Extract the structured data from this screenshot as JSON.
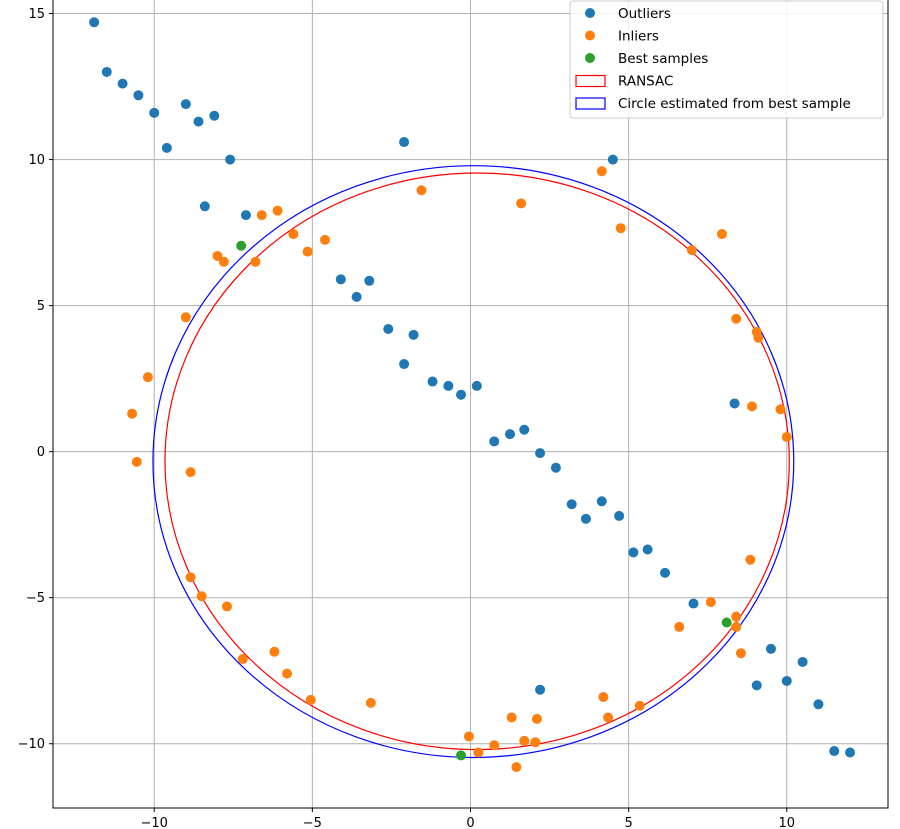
{
  "chart_data": {
    "type": "scatter",
    "title": "",
    "xlabel": "",
    "ylabel": "",
    "xlim": [
      -13.2,
      13.2
    ],
    "ylim": [
      -12.2,
      15.6
    ],
    "grid": true,
    "legend_placement": "top-right",
    "x_ticks": [
      {
        "value": -10,
        "label": "−10"
      },
      {
        "value": -5,
        "label": "−5"
      },
      {
        "value": 0,
        "label": "0"
      },
      {
        "value": 5,
        "label": "5"
      },
      {
        "value": 10,
        "label": "10"
      }
    ],
    "y_ticks": [
      {
        "value": 15,
        "label": "15"
      },
      {
        "value": 10,
        "label": "10"
      },
      {
        "value": 5,
        "label": "5"
      },
      {
        "value": 0,
        "label": "0"
      },
      {
        "value": -5,
        "label": "−5"
      },
      {
        "value": -10,
        "label": "−10"
      }
    ],
    "series": [
      {
        "name": "Outliers",
        "kind": "points",
        "color": "#1f77b4",
        "points": [
          [
            -11.9,
            14.7
          ],
          [
            -11.5,
            13.0
          ],
          [
            -11.0,
            12.6
          ],
          [
            -10.5,
            12.2
          ],
          [
            -10.0,
            11.6
          ],
          [
            -9.6,
            10.4
          ],
          [
            -9.0,
            11.9
          ],
          [
            -8.6,
            11.3
          ],
          [
            -8.1,
            11.5
          ],
          [
            -7.6,
            10.0
          ],
          [
            -8.4,
            8.4
          ],
          [
            -7.1,
            8.1
          ],
          [
            -4.1,
            5.9
          ],
          [
            -3.6,
            5.3
          ],
          [
            -3.2,
            5.85
          ],
          [
            -2.6,
            4.2
          ],
          [
            -1.8,
            4.0
          ],
          [
            -2.1,
            3.0
          ],
          [
            -1.2,
            2.4
          ],
          [
            -0.7,
            2.25
          ],
          [
            -0.3,
            1.95
          ],
          [
            0.2,
            2.25
          ],
          [
            0.75,
            0.35
          ],
          [
            1.25,
            0.6
          ],
          [
            1.7,
            0.75
          ],
          [
            2.2,
            -0.05
          ],
          [
            2.7,
            -0.55
          ],
          [
            3.2,
            -1.8
          ],
          [
            3.65,
            -2.3
          ],
          [
            4.15,
            -1.7
          ],
          [
            4.7,
            -2.2
          ],
          [
            5.15,
            -3.45
          ],
          [
            5.6,
            -3.35
          ],
          [
            6.15,
            -4.15
          ],
          [
            7.05,
            -5.2
          ],
          [
            8.35,
            1.65
          ],
          [
            9.05,
            -8.0
          ],
          [
            9.5,
            -6.75
          ],
          [
            10.0,
            -7.85
          ],
          [
            10.5,
            -7.2
          ],
          [
            11.0,
            -8.65
          ],
          [
            11.5,
            -10.25
          ],
          [
            12.0,
            -10.3
          ],
          [
            2.2,
            -8.15
          ],
          [
            -2.1,
            10.6
          ],
          [
            4.5,
            10.0
          ]
        ]
      },
      {
        "name": "Inliers",
        "kind": "points",
        "color": "#ff7f0e",
        "points": [
          [
            -10.7,
            1.3
          ],
          [
            -10.55,
            -0.35
          ],
          [
            -10.2,
            2.55
          ],
          [
            -9.0,
            4.6
          ],
          [
            -8.85,
            -0.7
          ],
          [
            -8.85,
            -4.3
          ],
          [
            -8.5,
            -4.95
          ],
          [
            -8.0,
            6.7
          ],
          [
            -7.8,
            6.5
          ],
          [
            -7.7,
            -5.3
          ],
          [
            -7.2,
            -7.1
          ],
          [
            -6.8,
            6.5
          ],
          [
            -6.6,
            8.1
          ],
          [
            -6.1,
            8.25
          ],
          [
            -6.2,
            -6.85
          ],
          [
            -5.8,
            -7.6
          ],
          [
            -5.6,
            7.45
          ],
          [
            -5.15,
            6.85
          ],
          [
            -5.05,
            -8.5
          ],
          [
            -4.6,
            7.25
          ],
          [
            -3.15,
            -8.6
          ],
          [
            -1.55,
            8.95
          ],
          [
            -0.05,
            -9.75
          ],
          [
            0.25,
            -10.3
          ],
          [
            0.75,
            -10.05
          ],
          [
            1.3,
            -9.1
          ],
          [
            1.45,
            -10.8
          ],
          [
            1.6,
            8.5
          ],
          [
            1.7,
            -9.9
          ],
          [
            2.05,
            -9.95
          ],
          [
            2.1,
            -9.15
          ],
          [
            4.15,
            9.6
          ],
          [
            4.2,
            -8.4
          ],
          [
            4.35,
            -9.1
          ],
          [
            4.75,
            7.65
          ],
          [
            5.35,
            -8.7
          ],
          [
            6.6,
            -6.0
          ],
          [
            7.0,
            6.9
          ],
          [
            7.6,
            -5.15
          ],
          [
            7.95,
            7.45
          ],
          [
            8.4,
            4.55
          ],
          [
            8.4,
            -5.65
          ],
          [
            8.4,
            -6.0
          ],
          [
            8.55,
            -6.9
          ],
          [
            8.85,
            -3.7
          ],
          [
            8.9,
            1.55
          ],
          [
            9.05,
            4.1
          ],
          [
            9.1,
            3.9
          ],
          [
            9.8,
            1.45
          ],
          [
            10.0,
            0.5
          ]
        ]
      },
      {
        "name": "Best samples",
        "kind": "points",
        "color": "#2ca02c",
        "points": [
          [
            -7.25,
            7.05
          ],
          [
            -0.3,
            -10.4
          ],
          [
            8.1,
            -5.85
          ]
        ]
      },
      {
        "name": "RANSAC",
        "kind": "circle",
        "color": "#ff0000",
        "center": [
          0.21,
          -0.33
        ],
        "radius": 9.87
      },
      {
        "name": "Circle estimated from best sample",
        "kind": "circle",
        "color": "#0000ff",
        "center": [
          0.09,
          -0.34
        ],
        "radius": 10.13
      }
    ]
  }
}
